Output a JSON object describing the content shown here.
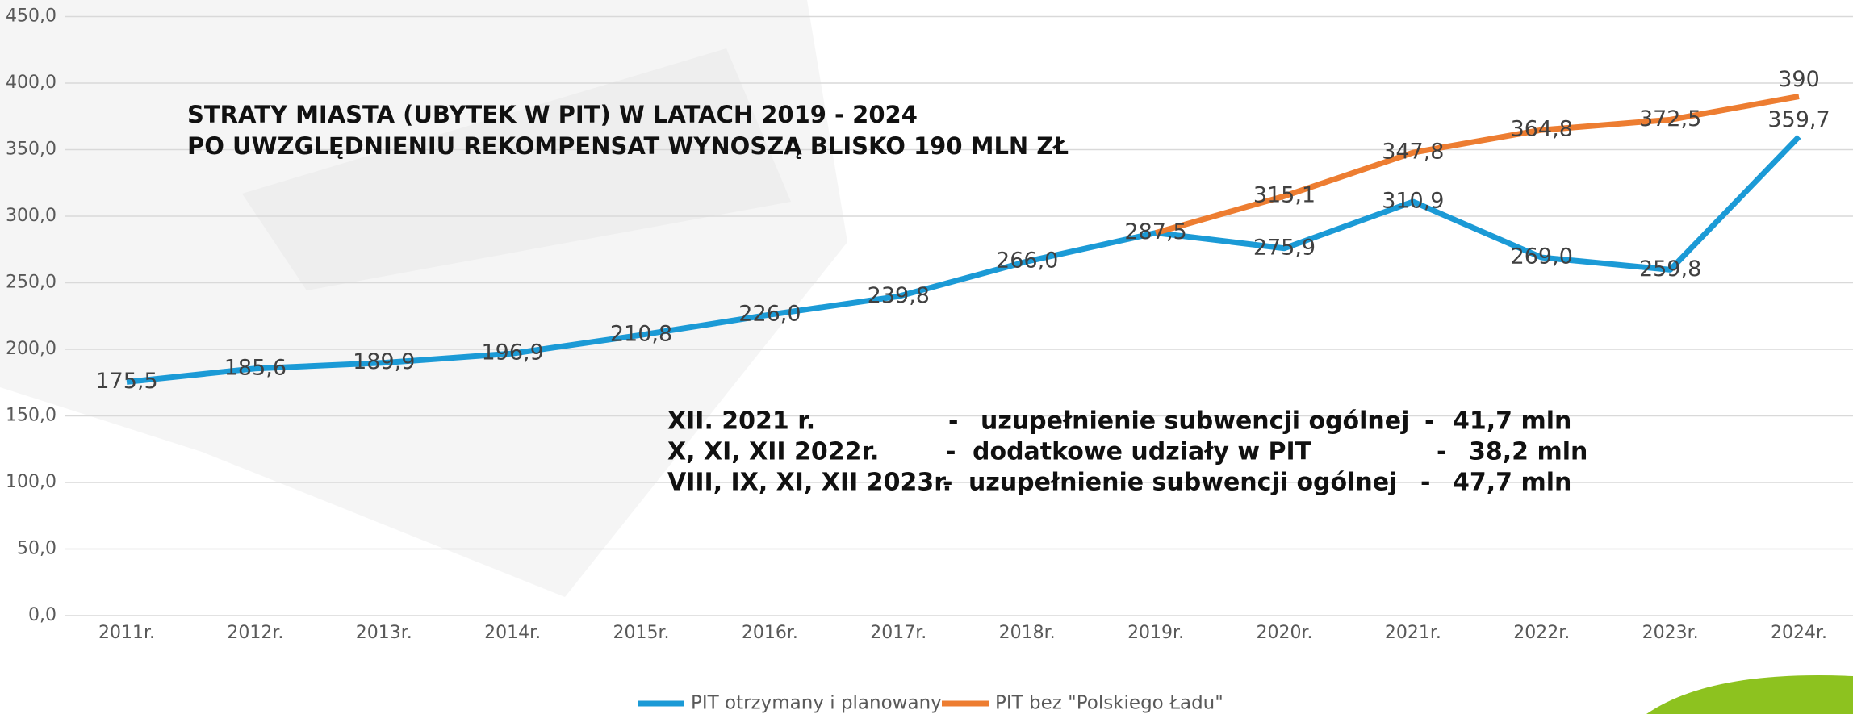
{
  "chart_data": {
    "type": "line",
    "title": [
      "STRATY MIASTA (UBYTEK W PIT) W LATACH 2019 - 2024",
      "PO UWZGLĘDNIENIU REKOMPENSAT WYNOSZĄ BLISKO 190 MLN ZŁ"
    ],
    "categories": [
      "2011r.",
      "2012r.",
      "2013r.",
      "2014r.",
      "2015r.",
      "2016r.",
      "2017r.",
      "2018r.",
      "2019r.",
      "2020r.",
      "2021r.",
      "2022r.",
      "2023r.",
      "2024r."
    ],
    "series": [
      {
        "name": "PIT otrzymany i planowany",
        "color": "#1b9ad6",
        "values": [
          175.5,
          185.6,
          189.9,
          196.9,
          210.8,
          226.0,
          239.8,
          266.0,
          287.5,
          275.9,
          310.9,
          269.0,
          259.8,
          359.7
        ],
        "value_labels": [
          "175,5",
          "185,6",
          "189,9",
          "196,9",
          "210,8",
          "226,0",
          "239,8",
          "266,0",
          "287,5",
          "275,9",
          "310,9",
          "269,0",
          "259,8",
          "359,7"
        ]
      },
      {
        "name": "PIT bez \"Polskiego Ładu\"",
        "color": "#ed7d31",
        "values": [
          null,
          null,
          null,
          null,
          null,
          null,
          null,
          null,
          287.5,
          315.1,
          347.8,
          364.8,
          372.5,
          390
        ],
        "value_labels": [
          null,
          null,
          null,
          null,
          null,
          null,
          null,
          null,
          null,
          "315,1",
          "347,8",
          "364,8",
          "372,5",
          "390"
        ]
      }
    ],
    "ylim": [
      0,
      450
    ],
    "yticks": [
      {
        "value": 0,
        "label": "0,0"
      },
      {
        "value": 50,
        "label": "50,0"
      },
      {
        "value": 100,
        "label": "100,0"
      },
      {
        "value": 150,
        "label": "150,0"
      },
      {
        "value": 200,
        "label": "200,0"
      },
      {
        "value": 250,
        "label": "250,0"
      },
      {
        "value": 300,
        "label": "300,0"
      },
      {
        "value": 350,
        "label": "350,0"
      },
      {
        "value": 400,
        "label": "400,0"
      },
      {
        "value": 450,
        "label": "450,0"
      }
    ],
    "grid": true,
    "legend": "bottom",
    "separator": "-",
    "annotations": [
      {
        "period": "XII. 2021 r.",
        "desc": "uzupełnienie subwencji ogólnej",
        "amount": "41,7 mln"
      },
      {
        "period": "X, XI, XII 2022r.",
        "desc": "dodatkowe udziały w PIT",
        "amount": "38,2 mln"
      },
      {
        "period": "VIII, IX, XI, XII 2023r.",
        "desc": "uzupełnienie subwencji ogólnej",
        "amount": "47,7 mln"
      }
    ]
  }
}
